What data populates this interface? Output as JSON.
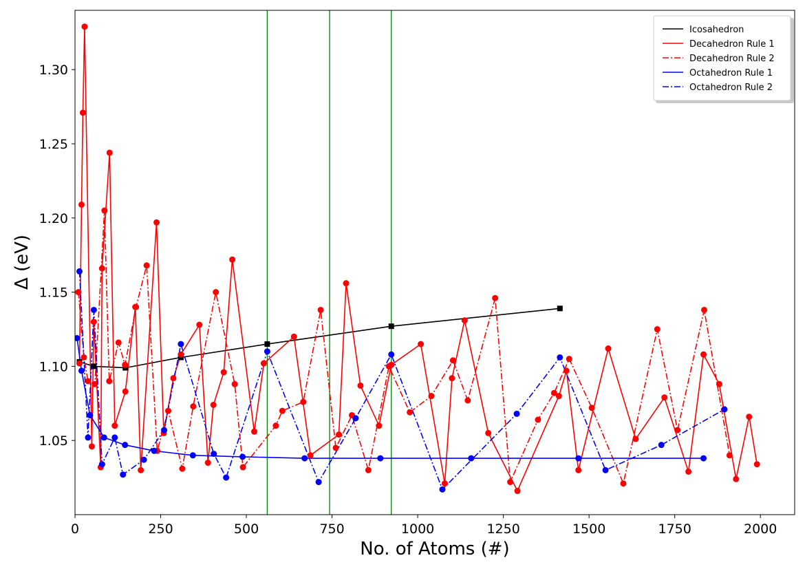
{
  "chart_data": {
    "type": "line",
    "xlabel": "No. of Atoms (#)",
    "ylabel": "Δ (eV)",
    "xlim": [
      0,
      2100
    ],
    "ylim": [
      1.0,
      1.34
    ],
    "xticks": [
      0,
      250,
      500,
      750,
      1000,
      1250,
      1500,
      1750,
      2000
    ],
    "yticks": [
      1.05,
      1.1,
      1.15,
      1.2,
      1.25,
      1.3
    ],
    "xtick_labels": [
      "0",
      "250",
      "500",
      "750",
      "1000",
      "1250",
      "1500",
      "1750",
      "2000"
    ],
    "ytick_labels": [
      "1.05",
      "1.10",
      "1.15",
      "1.20",
      "1.25",
      "1.30"
    ],
    "vertical_lines": [
      561,
      743,
      923
    ],
    "vertical_line_color": "#008000",
    "legend_position": "top-right",
    "series": [
      {
        "name": "Icosahedron",
        "color": "#000000",
        "style": "solid",
        "marker": "square",
        "x": [
          13,
          55,
          147,
          309,
          561,
          923,
          1415
        ],
        "y": [
          1.103,
          1.1,
          1.099,
          1.106,
          1.115,
          1.127,
          1.139
        ]
      },
      {
        "name": "Decahedron Rule 1",
        "color": "#ff0000",
        "style": "solid",
        "marker": "circle",
        "x": [
          13,
          19,
          23,
          28,
          49,
          55,
          75,
          79,
          101,
          116,
          147,
          176,
          192,
          238,
          259,
          287,
          309,
          363,
          388,
          404,
          434,
          459,
          523,
          551,
          639,
          687,
          770,
          791,
          833,
          887,
          923,
          1009,
          1079,
          1100,
          1137,
          1206,
          1291,
          1412,
          1434,
          1469,
          1556,
          1636,
          1720,
          1790,
          1834,
          1880,
          1929,
          1967,
          1990
        ],
        "y": [
          1.102,
          1.209,
          1.271,
          1.329,
          1.046,
          1.13,
          1.032,
          1.166,
          1.244,
          1.06,
          1.083,
          1.14,
          1.03,
          1.197,
          1.055,
          1.092,
          1.108,
          1.128,
          1.035,
          1.074,
          1.096,
          1.172,
          1.056,
          1.102,
          1.12,
          1.04,
          1.054,
          1.156,
          1.087,
          1.06,
          1.101,
          1.115,
          1.021,
          1.092,
          1.131,
          1.055,
          1.016,
          1.08,
          1.097,
          1.03,
          1.112,
          1.051,
          1.079,
          1.029,
          1.108,
          1.088,
          1.024,
          1.066,
          1.034
        ]
      },
      {
        "name": "Decahedron Rule 2",
        "color": "#ff0000",
        "style": "dashdot",
        "marker": "circle",
        "x": [
          10,
          26,
          38,
          58,
          86,
          100,
          127,
          146,
          178,
          209,
          240,
          272,
          313,
          345,
          411,
          466,
          490,
          586,
          605,
          666,
          717,
          761,
          808,
          856,
          916,
          977,
          1040,
          1103,
          1146,
          1226,
          1270,
          1351,
          1398,
          1442,
          1508,
          1600,
          1699,
          1758,
          1836,
          1910
        ],
        "y": [
          1.15,
          1.106,
          1.09,
          1.088,
          1.205,
          1.09,
          1.116,
          1.101,
          1.14,
          1.168,
          1.043,
          1.07,
          1.031,
          1.073,
          1.15,
          1.088,
          1.032,
          1.06,
          1.07,
          1.076,
          1.138,
          1.045,
          1.067,
          1.03,
          1.1,
          1.069,
          1.08,
          1.104,
          1.077,
          1.146,
          1.022,
          1.064,
          1.082,
          1.105,
          1.072,
          1.021,
          1.125,
          1.057,
          1.138,
          1.04
        ]
      },
      {
        "name": "Octahedron Rule 1",
        "color": "#0000ff",
        "style": "solid",
        "marker": "circle",
        "x": [
          6,
          19,
          44,
          85,
          146,
          231,
          344,
          489,
          670,
          891,
          1156,
          1469,
          1834
        ],
        "y": [
          1.119,
          1.097,
          1.067,
          1.052,
          1.047,
          1.043,
          1.04,
          1.039,
          1.038,
          1.038,
          1.038,
          1.038,
          1.038
        ]
      },
      {
        "name": "Octahedron Rule 2",
        "color": "#0000ff",
        "style": "dashdot",
        "marker": "circle",
        "x": [
          13,
          38,
          55,
          79,
          116,
          140,
          201,
          260,
          309,
          405,
          441,
          561,
          711,
          819,
          923,
          1072,
          1289,
          1415,
          1548,
          1711,
          1895
        ],
        "y": [
          1.164,
          1.052,
          1.138,
          1.034,
          1.052,
          1.027,
          1.037,
          1.057,
          1.115,
          1.041,
          1.025,
          1.11,
          1.022,
          1.065,
          1.108,
          1.017,
          1.068,
          1.106,
          1.03,
          1.047,
          1.071
        ]
      }
    ]
  }
}
